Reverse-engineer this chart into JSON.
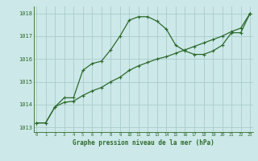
{
  "line1_x": [
    0,
    1,
    2,
    3,
    4,
    5,
    6,
    7,
    8,
    9,
    10,
    11,
    12,
    13,
    14,
    15,
    16,
    17,
    18,
    19,
    20,
    21,
    22,
    23
  ],
  "line1_y": [
    1013.2,
    1013.2,
    1013.9,
    1014.3,
    1014.3,
    1015.5,
    1015.8,
    1015.9,
    1016.4,
    1017.0,
    1017.7,
    1017.85,
    1017.85,
    1017.65,
    1017.3,
    1016.6,
    1016.35,
    1016.2,
    1016.2,
    1016.35,
    1016.6,
    1017.15,
    1017.15,
    1018.0
  ],
  "line2_x": [
    0,
    1,
    2,
    3,
    4,
    5,
    6,
    7,
    8,
    9,
    10,
    11,
    12,
    13,
    14,
    15,
    16,
    17,
    18,
    19,
    20,
    21,
    22,
    23
  ],
  "line2_y": [
    1013.2,
    1013.2,
    1013.9,
    1014.1,
    1014.15,
    1014.4,
    1014.6,
    1014.75,
    1015.0,
    1015.2,
    1015.5,
    1015.7,
    1015.85,
    1016.0,
    1016.1,
    1016.25,
    1016.4,
    1016.55,
    1016.7,
    1016.85,
    1017.0,
    1017.2,
    1017.35,
    1018.0
  ],
  "line_color": "#2d6a2d",
  "bg_color": "#cce8e8",
  "grid_color": "#aacccc",
  "xlabel": "Graphe pression niveau de la mer (hPa)",
  "xlabel_color": "#2d6a2d",
  "tick_color": "#2d6a2d",
  "ylim": [
    1012.8,
    1018.3
  ],
  "xlim": [
    -0.3,
    23.3
  ],
  "yticks": [
    1013,
    1014,
    1015,
    1016,
    1017,
    1018
  ],
  "xticks": [
    0,
    1,
    2,
    3,
    4,
    5,
    6,
    7,
    8,
    9,
    10,
    11,
    12,
    13,
    14,
    15,
    16,
    17,
    18,
    19,
    20,
    21,
    22,
    23
  ]
}
